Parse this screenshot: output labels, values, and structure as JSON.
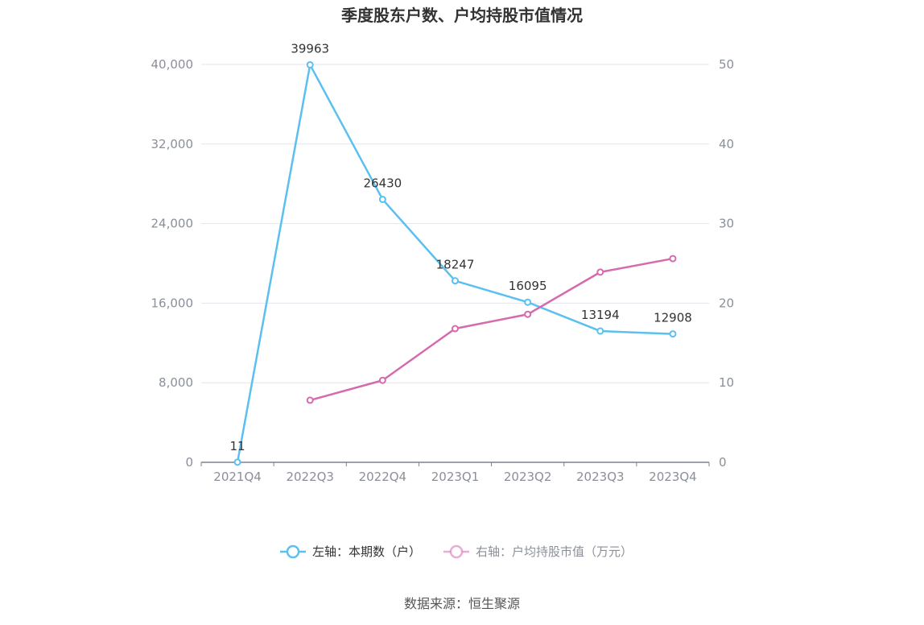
{
  "chart_data": {
    "type": "line",
    "title": "季度股东户数、户均持股市值情况",
    "categories": [
      "2021Q4",
      "2022Q3",
      "2022Q4",
      "2023Q1",
      "2023Q2",
      "2023Q3",
      "2023Q4"
    ],
    "left_axis": {
      "min": 0,
      "max": 40000,
      "ticks": [
        "0",
        "8,000",
        "16,000",
        "24,000",
        "32,000",
        "40,000"
      ]
    },
    "right_axis": {
      "min": 0,
      "max": 50,
      "ticks": [
        "0",
        "10",
        "20",
        "30",
        "40",
        "50"
      ]
    },
    "grid": true,
    "legend_position": "bottom",
    "series": [
      {
        "name": "左轴：本期数（户）",
        "axis": "left",
        "color": "#5bc0f0",
        "values": [
          11,
          39963,
          26430,
          18247,
          16095,
          13194,
          12908
        ],
        "labels": [
          "11",
          "39963",
          "26430",
          "18247",
          "16095",
          "13194",
          "12908"
        ]
      },
      {
        "name": "右轴：户均持股市值（万元）",
        "axis": "right",
        "color": "#d56aae",
        "values": [
          null,
          7.8,
          10.3,
          16.8,
          18.6,
          23.9,
          25.6
        ]
      }
    ]
  },
  "footer": {
    "source": "数据来源：恒生聚源"
  }
}
